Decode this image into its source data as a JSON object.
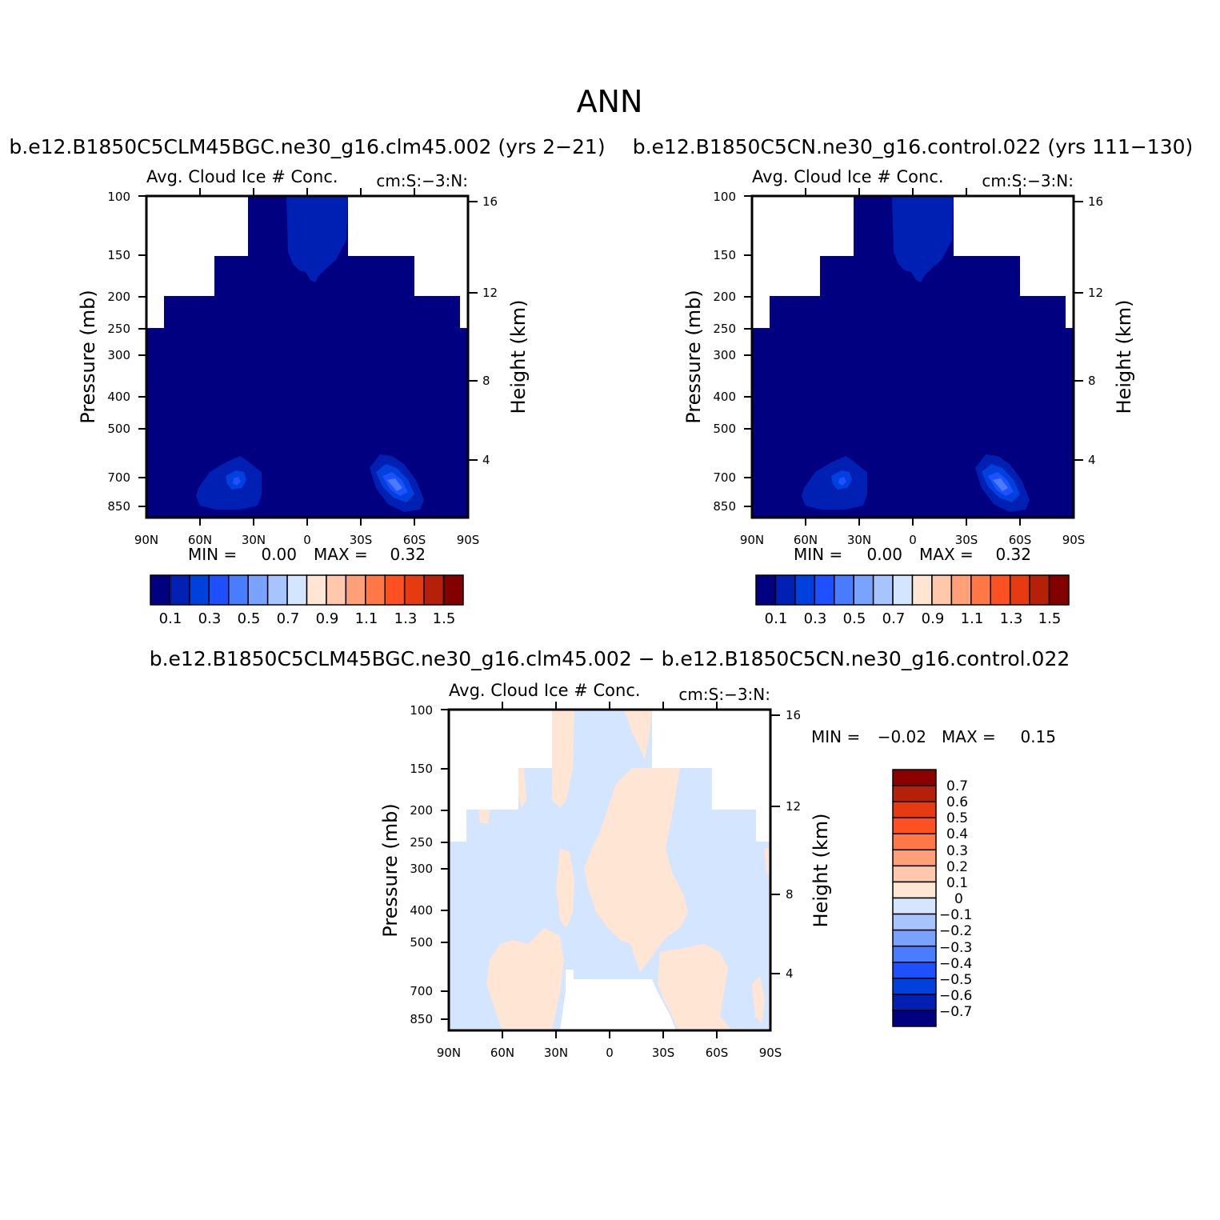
{
  "title": "ANN",
  "panels": [
    {
      "id": "left",
      "case_title": "b.e12.B1850C5CLM45BGC.ne30_g16.clm45.002 (yrs 2-21)",
      "var_title": "Avg. Cloud Ice # Conc.",
      "units": "cm:S:-3:N:",
      "ylabel": "Pressure (mb)",
      "y2label": "Height (km)",
      "y_ticks": [
        "100",
        "150",
        "200",
        "250",
        "300",
        "400",
        "500",
        "700",
        "850"
      ],
      "y2_ticks": [
        "16",
        "12",
        "8",
        "4"
      ],
      "x_ticks": [
        "90N",
        "60N",
        "30N",
        "0",
        "30S",
        "60S",
        "90S"
      ],
      "min_label": "MIN =",
      "min_value": "0.00",
      "max_label": "MAX =",
      "max_value": "0.32",
      "colorbar_labels": [
        "0.1",
        "0.3",
        "0.5",
        "0.7",
        "0.9",
        "1.1",
        "1.3",
        "1.5"
      ]
    },
    {
      "id": "right",
      "case_title": "b.e12.B1850C5CN.ne30_g16.control.022 (yrs 111-130)",
      "var_title": "Avg. Cloud Ice # Conc.",
      "units": "cm:S:-3:N:",
      "ylabel": "Pressure (mb)",
      "y2label": "Height (km)",
      "y_ticks": [
        "100",
        "150",
        "200",
        "250",
        "300",
        "400",
        "500",
        "700",
        "850"
      ],
      "y2_ticks": [
        "16",
        "12",
        "8",
        "4"
      ],
      "x_ticks": [
        "90N",
        "60N",
        "30N",
        "0",
        "30S",
        "60S",
        "90S"
      ],
      "min_label": "MIN =",
      "min_value": "0.00",
      "max_label": "MAX =",
      "max_value": "0.32",
      "colorbar_labels": [
        "0.1",
        "0.3",
        "0.5",
        "0.7",
        "0.9",
        "1.1",
        "1.3",
        "1.5"
      ]
    },
    {
      "id": "diff",
      "case_title": "b.e12.B1850C5CLM45BGC.ne30_g16.clm45.002 - b.e12.B1850C5CN.ne30_g16.control.022",
      "var_title": "Avg. Cloud Ice # Conc.",
      "units": "cm:S:-3:N:",
      "ylabel": "Pressure (mb)",
      "y2label": "Height (km)",
      "y_ticks": [
        "100",
        "150",
        "200",
        "250",
        "300",
        "400",
        "500",
        "700",
        "850"
      ],
      "y2_ticks": [
        "16",
        "12",
        "8",
        "4"
      ],
      "x_ticks": [
        "90N",
        "60N",
        "30N",
        "0",
        "30S",
        "60S",
        "90S"
      ],
      "min_label": "MIN =",
      "min_value": "-0.02",
      "max_label": "MAX =",
      "max_value": "0.15",
      "colorbar_labels": [
        "0.7",
        "0.6",
        "0.5",
        "0.4",
        "0.3",
        "0.2",
        "0.1",
        "0",
        "-0.1",
        "-0.2",
        "-0.3",
        "-0.4",
        "-0.5",
        "-0.6",
        "-0.7"
      ]
    }
  ],
  "colors": {
    "abs_scale": [
      "#000080",
      "#0020b4",
      "#0040dc",
      "#1e50ff",
      "#4a7cff",
      "#7aa2ff",
      "#a8c4ff",
      "#d4e6ff",
      "#ffe6d4",
      "#ffc8ac",
      "#ffa078",
      "#ff7846",
      "#ff5022",
      "#e63a10",
      "#b42008",
      "#820000"
    ],
    "diff_scale": [
      "#8c0000",
      "#b42008",
      "#e63a10",
      "#ff5022",
      "#ff7846",
      "#ffa078",
      "#ffc8ac",
      "#ffe6d4",
      "#d4e6ff",
      "#a8c4ff",
      "#7aa2ff",
      "#4a7cff",
      "#1e50ff",
      "#0040dc",
      "#0020b4",
      "#000080"
    ],
    "small_positive": "#ffe6d4",
    "small_negative": "#d4e6ff"
  },
  "chart_data": [
    {
      "type": "heatmap",
      "panel": "left",
      "x_axis": {
        "label": "",
        "range": [
          90,
          -90
        ],
        "ticks": [
          "90N",
          "60N",
          "30N",
          "0",
          "30S",
          "60S",
          "90S"
        ]
      },
      "y_axis": {
        "label": "Pressure (mb)",
        "log_scale": true,
        "range": [
          100,
          1000
        ]
      },
      "y2_axis": {
        "label": "Height (km)",
        "ticks": [
          16,
          12,
          8,
          4
        ]
      },
      "levels": [
        0.1,
        0.2,
        0.3,
        0.4,
        0.5,
        0.6,
        0.7,
        0.8,
        0.9,
        1.0,
        1.1,
        1.2,
        1.3,
        1.4,
        1.5
      ],
      "min": 0.0,
      "max": 0.32,
      "features": [
        {
          "desc": "background below 0.1",
          "value_range": [
            0,
            0.1
          ]
        },
        {
          "desc": "tropical upper-troposphere maximum",
          "lat": [
            0,
            8
          ],
          "pressure": [
            100,
            190
          ],
          "value": 0.12
        },
        {
          "desc": "NH mid-latitude low-level maximum",
          "lat": [
            35,
            50
          ],
          "pressure": [
            650,
            850
          ],
          "value": 0.22
        },
        {
          "desc": "SH mid-latitude low-level maximum",
          "lat": [
            -40,
            -55
          ],
          "pressure": [
            640,
            850
          ],
          "value": 0.32
        }
      ]
    },
    {
      "type": "heatmap",
      "panel": "right",
      "x_axis": {
        "label": "",
        "range": [
          90,
          -90
        ],
        "ticks": [
          "90N",
          "60N",
          "30N",
          "0",
          "30S",
          "60S",
          "90S"
        ]
      },
      "y_axis": {
        "label": "Pressure (mb)",
        "log_scale": true,
        "range": [
          100,
          1000
        ]
      },
      "y2_axis": {
        "label": "Height (km)",
        "ticks": [
          16,
          12,
          8,
          4
        ]
      },
      "levels": [
        0.1,
        0.2,
        0.3,
        0.4,
        0.5,
        0.6,
        0.7,
        0.8,
        0.9,
        1.0,
        1.1,
        1.2,
        1.3,
        1.4,
        1.5
      ],
      "min": 0.0,
      "max": 0.32,
      "features": [
        {
          "desc": "background below 0.1",
          "value_range": [
            0,
            0.1
          ]
        },
        {
          "desc": "tropical upper-troposphere maximum",
          "lat": [
            0,
            8
          ],
          "pressure": [
            100,
            190
          ],
          "value": 0.12
        },
        {
          "desc": "NH mid-latitude low-level maximum",
          "lat": [
            35,
            50
          ],
          "pressure": [
            650,
            850
          ],
          "value": 0.22
        },
        {
          "desc": "SH mid-latitude low-level maximum",
          "lat": [
            -40,
            -55
          ],
          "pressure": [
            640,
            850
          ],
          "value": 0.32
        }
      ]
    },
    {
      "type": "heatmap",
      "panel": "diff",
      "x_axis": {
        "label": "",
        "range": [
          90,
          -90
        ],
        "ticks": [
          "90N",
          "60N",
          "30N",
          "0",
          "30S",
          "60S",
          "90S"
        ]
      },
      "y_axis": {
        "label": "Pressure (mb)",
        "log_scale": true,
        "range": [
          100,
          1000
        ]
      },
      "y2_axis": {
        "label": "Height (km)",
        "ticks": [
          16,
          12,
          8,
          4
        ]
      },
      "levels": [
        -0.7,
        -0.6,
        -0.5,
        -0.4,
        -0.3,
        -0.2,
        -0.1,
        0,
        0.1,
        0.2,
        0.3,
        0.4,
        0.5,
        0.6,
        0.7
      ],
      "min": -0.02,
      "max": 0.15,
      "features": [
        {
          "desc": "mostly between -0.1 and 0",
          "value_range": [
            -0.1,
            0
          ]
        },
        {
          "desc": "patches between 0 and 0.1",
          "value_range": [
            0,
            0.1
          ]
        }
      ]
    }
  ]
}
